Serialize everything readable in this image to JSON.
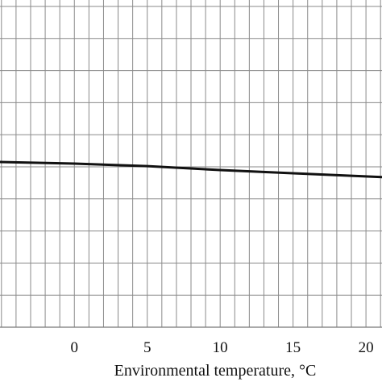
{
  "chart_data": {
    "type": "line",
    "xlabel": "Environmental temperature, °C",
    "ylabel": "",
    "x_ticks": [
      {
        "value": 0,
        "label": "0"
      },
      {
        "value": 5,
        "label": "5"
      },
      {
        "value": 10,
        "label": "10"
      },
      {
        "value": 15,
        "label": "15"
      },
      {
        "value": 20,
        "label": "20"
      }
    ],
    "xlim": [
      -5.1,
      21.1
    ],
    "ylim": [
      0,
      10.2
    ],
    "grid": {
      "enabled": true,
      "x_step": 1.0,
      "y_step": 1.0,
      "color": "#8a8a8a"
    },
    "series": [
      {
        "x": [
          -5.1,
          0,
          5,
          10,
          15,
          21.1
        ],
        "y": [
          5.15,
          5.1,
          5.02,
          4.9,
          4.8,
          4.68
        ],
        "color": "#111111"
      }
    ]
  }
}
